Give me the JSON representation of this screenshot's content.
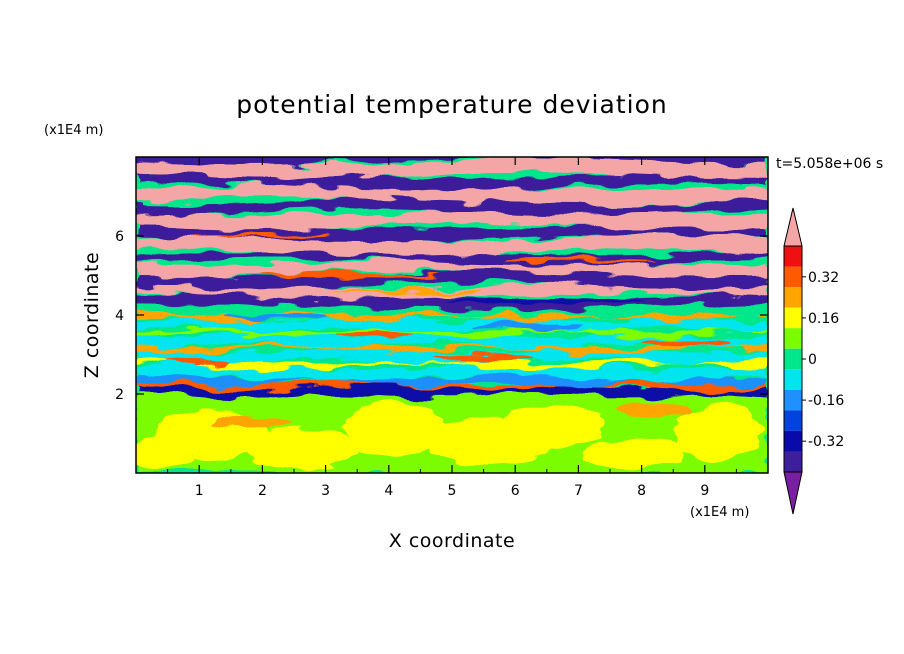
{
  "chart_data": {
    "type": "heatmap",
    "title": "potential temperature deviation",
    "xlabel": "X coordinate",
    "ylabel": "Z coordinate",
    "x_unit": "(x1E4 m)",
    "y_unit": "(x1E4 m)",
    "time_label": "t=5.058e+06 s",
    "xlim": [
      0,
      10
    ],
    "ylim": [
      0,
      8
    ],
    "x_ticks": [
      1,
      2,
      3,
      4,
      5,
      6,
      7,
      8,
      9
    ],
    "y_ticks": [
      2,
      4,
      6
    ],
    "colorbar": {
      "levels": [
        -0.48,
        -0.4,
        -0.32,
        -0.24,
        -0.16,
        -0.08,
        0,
        0.08,
        0.16,
        0.24,
        0.32,
        0.4,
        0.48
      ],
      "colors": [
        "#7b1fa2",
        "#3d1f9c",
        "#0a0aa8",
        "#0044dd",
        "#1e90ff",
        "#00e5ee",
        "#00e68a",
        "#7cfc00",
        "#ffff00",
        "#ffa500",
        "#ff5a00",
        "#ee1111",
        "#f4a6a6"
      ],
      "extend": "both",
      "tick_labels": [
        "0.32",
        "0.16",
        "0",
        "-0.16",
        "-0.32"
      ]
    },
    "layers": [
      {
        "z_range": [
          0,
          2.0
        ],
        "dominant_value": 0.04,
        "description_values": [
          0.0,
          0.08
        ]
      },
      {
        "z_range": [
          2.0,
          2.4
        ],
        "dominant_value": -0.3,
        "description_values": [
          -0.4,
          0.3
        ]
      },
      {
        "z_range": [
          2.4,
          4.2
        ],
        "dominant_value": -0.05,
        "description_values": [
          -0.16,
          0.16
        ]
      },
      {
        "z_range": [
          4.2,
          8.0
        ],
        "dominant_value": 0.5,
        "description_values": [
          -0.5,
          0.5
        ]
      }
    ]
  }
}
